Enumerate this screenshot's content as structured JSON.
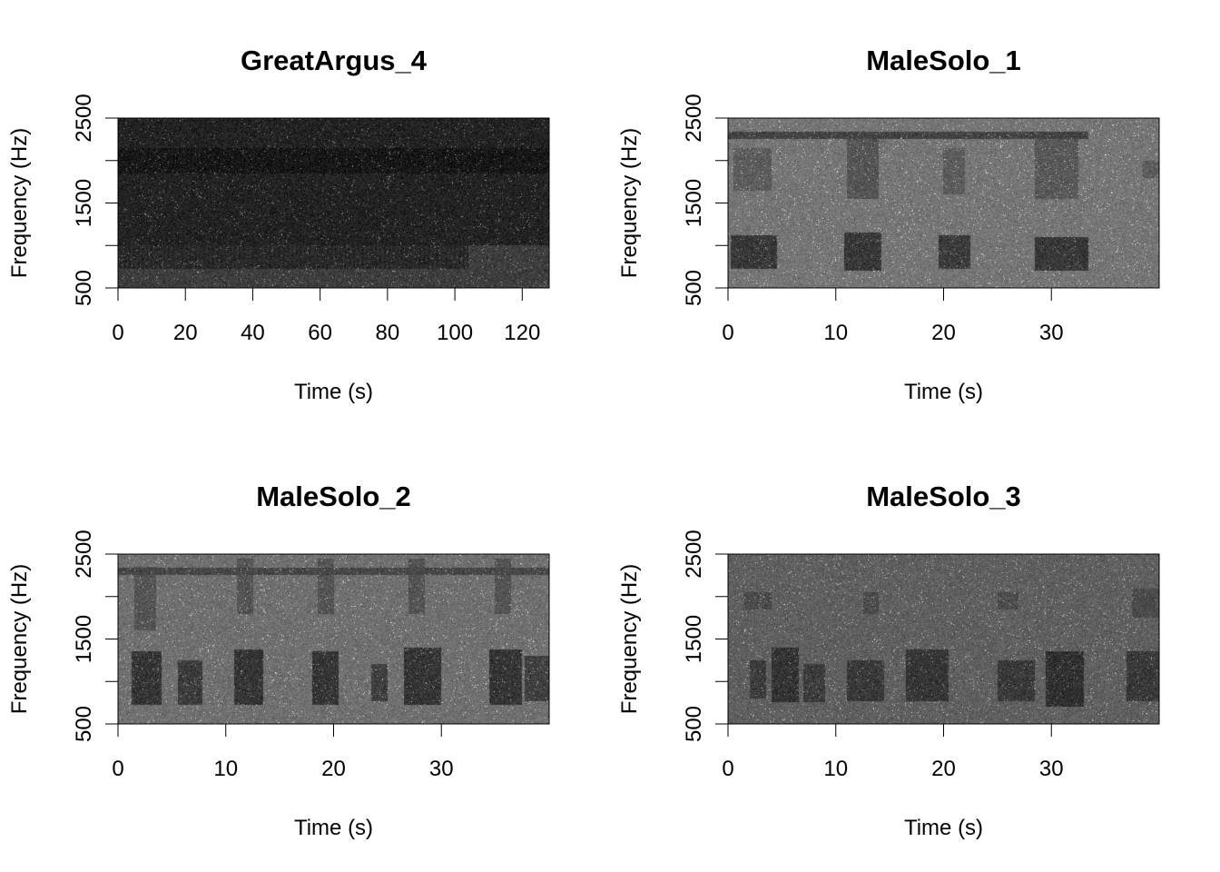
{
  "figure": {
    "background": "#ffffff",
    "palette": [
      "#000000",
      "#ffffff"
    ],
    "layout": "2x2"
  },
  "chart_data": [
    {
      "type": "heatmap",
      "title": "GreatArgus_4",
      "xlabel": "Time (s)",
      "ylabel": "Frequency (Hz)",
      "xlim": [
        0,
        128
      ],
      "ylim": [
        500,
        2500
      ],
      "xticks": [
        0,
        20,
        40,
        60,
        80,
        100,
        120
      ],
      "yticks": [
        500,
        1000,
        1500,
        2000,
        2500
      ],
      "ytick_labels": [
        "500",
        "",
        "1500",
        "",
        "2500"
      ],
      "grid": false,
      "legend": "none",
      "base_gray": 62,
      "energy_bands": [
        {
          "t0": 0,
          "t1": 128,
          "f0": 1000,
          "f1": 2500,
          "level": 0.6
        },
        {
          "t0": 0,
          "t1": 128,
          "f0": 1850,
          "f1": 2150,
          "level": 0.85
        }
      ],
      "calls": [
        {
          "t0": 0,
          "t1": 104,
          "f0": 720,
          "f1": 1000,
          "level": 0.55,
          "striated": true
        }
      ]
    },
    {
      "type": "heatmap",
      "title": "MaleSolo_1",
      "xlabel": "Time (s)",
      "ylabel": "Frequency (Hz)",
      "xlim": [
        0,
        40
      ],
      "ylim": [
        500,
        2500
      ],
      "xticks": [
        0,
        10,
        20,
        30
      ],
      "yticks": [
        500,
        1000,
        1500,
        2000,
        2500
      ],
      "ytick_labels": [
        "500",
        "",
        "1500",
        "",
        "2500"
      ],
      "grid": false,
      "legend": "none",
      "base_gray": 118,
      "energy_bands": [
        {
          "t0": 0,
          "t1": 33.5,
          "f0": 2260,
          "f1": 2340,
          "level": 0.6
        }
      ],
      "calls": [
        {
          "t0": 0.2,
          "t1": 4.5,
          "f0": 720,
          "f1": 1120,
          "level": 0.85
        },
        {
          "t0": 10.8,
          "t1": 14.2,
          "f0": 700,
          "f1": 1150,
          "level": 0.85
        },
        {
          "t0": 19.5,
          "t1": 22.5,
          "f0": 720,
          "f1": 1120,
          "level": 0.8
        },
        {
          "t0": 28.5,
          "t1": 33.5,
          "f0": 700,
          "f1": 1100,
          "level": 0.85
        },
        {
          "t0": 0.5,
          "t1": 4,
          "f0": 1650,
          "f1": 2150,
          "level": 0.35
        },
        {
          "t0": 11,
          "t1": 14,
          "f0": 1550,
          "f1": 2300,
          "level": 0.45
        },
        {
          "t0": 20,
          "t1": 22,
          "f0": 1600,
          "f1": 2150,
          "level": 0.35
        },
        {
          "t0": 28.5,
          "t1": 32.5,
          "f0": 1550,
          "f1": 2300,
          "level": 0.4
        },
        {
          "t0": 38.5,
          "t1": 40,
          "f0": 1800,
          "f1": 2000,
          "level": 0.35
        }
      ]
    },
    {
      "type": "heatmap",
      "title": "MaleSolo_2",
      "xlabel": "Time (s)",
      "ylabel": "Frequency (Hz)",
      "xlim": [
        0,
        40
      ],
      "ylim": [
        500,
        2500
      ],
      "xticks": [
        0,
        10,
        20,
        30
      ],
      "yticks": [
        500,
        1000,
        1500,
        2000,
        2500
      ],
      "ytick_labels": [
        "500",
        "",
        "1500",
        "",
        "2500"
      ],
      "grid": false,
      "legend": "none",
      "base_gray": 112,
      "energy_bands": [
        {
          "t0": 0,
          "t1": 40,
          "f0": 2260,
          "f1": 2340,
          "level": 0.5
        }
      ],
      "calls": [
        {
          "t0": 1.2,
          "t1": 4,
          "f0": 720,
          "f1": 1350,
          "level": 0.85
        },
        {
          "t0": 5.5,
          "t1": 7.8,
          "f0": 720,
          "f1": 1250,
          "level": 0.75
        },
        {
          "t0": 10.8,
          "t1": 13.5,
          "f0": 720,
          "f1": 1380,
          "level": 0.85
        },
        {
          "t0": 18,
          "t1": 20.5,
          "f0": 720,
          "f1": 1350,
          "level": 0.85
        },
        {
          "t0": 23.5,
          "t1": 25,
          "f0": 760,
          "f1": 1200,
          "level": 0.7
        },
        {
          "t0": 26.5,
          "t1": 30,
          "f0": 720,
          "f1": 1400,
          "level": 0.85
        },
        {
          "t0": 34.5,
          "t1": 37.5,
          "f0": 720,
          "f1": 1380,
          "level": 0.85
        },
        {
          "t0": 37.8,
          "t1": 40,
          "f0": 760,
          "f1": 1300,
          "level": 0.7
        },
        {
          "t0": 1.5,
          "t1": 3.5,
          "f0": 1600,
          "f1": 2350,
          "level": 0.4
        },
        {
          "t0": 11,
          "t1": 12.5,
          "f0": 1800,
          "f1": 2450,
          "level": 0.4
        },
        {
          "t0": 18.5,
          "t1": 20,
          "f0": 1800,
          "f1": 2450,
          "level": 0.4
        },
        {
          "t0": 27,
          "t1": 28.5,
          "f0": 1800,
          "f1": 2450,
          "level": 0.4
        },
        {
          "t0": 35,
          "t1": 36.5,
          "f0": 1800,
          "f1": 2450,
          "level": 0.4
        }
      ]
    },
    {
      "type": "heatmap",
      "title": "MaleSolo_3",
      "xlabel": "Time (s)",
      "ylabel": "Frequency (Hz)",
      "xlim": [
        0,
        40
      ],
      "ylim": [
        500,
        2500
      ],
      "xticks": [
        0,
        10,
        20,
        30
      ],
      "yticks": [
        500,
        1000,
        1500,
        2000,
        2500
      ],
      "ytick_labels": [
        "500",
        "",
        "1500",
        "",
        "2500"
      ],
      "grid": false,
      "legend": "none",
      "base_gray": 96,
      "energy_bands": [],
      "calls": [
        {
          "t0": 2,
          "t1": 3.5,
          "f0": 800,
          "f1": 1250,
          "level": 0.6
        },
        {
          "t0": 4,
          "t1": 6.5,
          "f0": 750,
          "f1": 1400,
          "level": 0.75
        },
        {
          "t0": 7,
          "t1": 9,
          "f0": 750,
          "f1": 1200,
          "level": 0.6
        },
        {
          "t0": 11,
          "t1": 14.5,
          "f0": 760,
          "f1": 1250,
          "level": 0.65
        },
        {
          "t0": 16.5,
          "t1": 20.5,
          "f0": 760,
          "f1": 1380,
          "level": 0.7
        },
        {
          "t0": 25,
          "t1": 28.5,
          "f0": 760,
          "f1": 1250,
          "level": 0.65
        },
        {
          "t0": 29.5,
          "t1": 33,
          "f0": 700,
          "f1": 1350,
          "level": 0.8
        },
        {
          "t0": 37,
          "t1": 40,
          "f0": 760,
          "f1": 1350,
          "level": 0.65
        },
        {
          "t0": 1.5,
          "t1": 4,
          "f0": 1850,
          "f1": 2050,
          "level": 0.35
        },
        {
          "t0": 12.5,
          "t1": 14,
          "f0": 1800,
          "f1": 2050,
          "level": 0.35
        },
        {
          "t0": 25,
          "t1": 27,
          "f0": 1850,
          "f1": 2050,
          "level": 0.3
        },
        {
          "t0": 37.5,
          "t1": 40,
          "f0": 1750,
          "f1": 2100,
          "level": 0.35
        }
      ]
    }
  ]
}
